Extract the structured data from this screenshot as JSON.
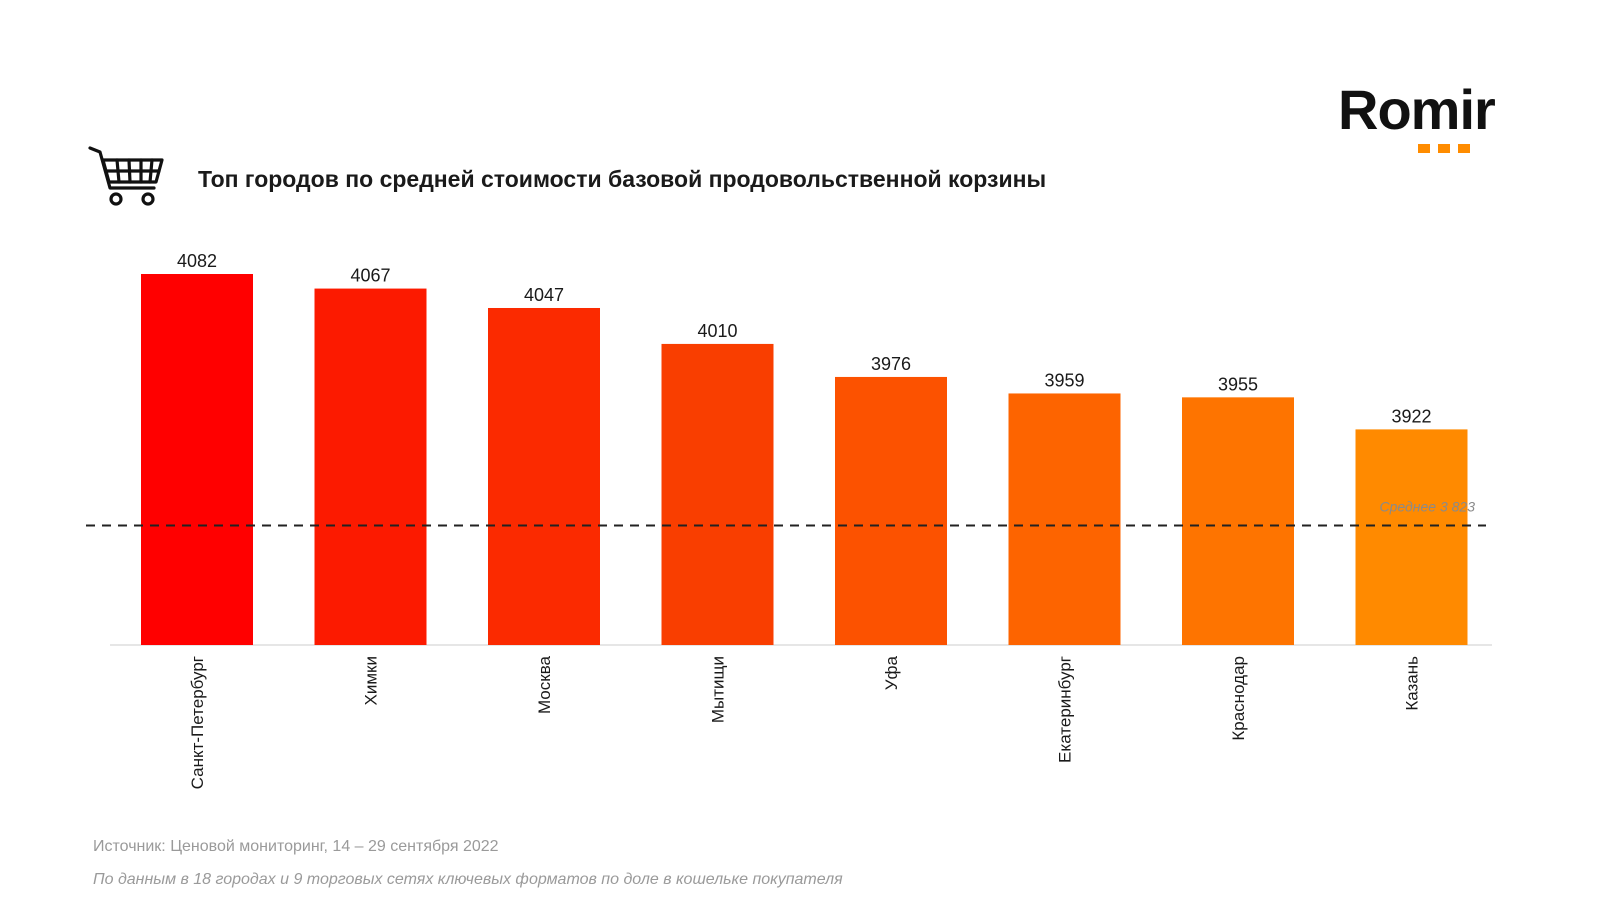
{
  "brand": {
    "name": "Romir",
    "dot_color": "#ff8c00"
  },
  "chart_data": {
    "type": "bar",
    "title": "Топ городов по средней стоимости базовой продовольственной корзины",
    "categories": [
      "Санкт-Петербург",
      "Химки",
      "Москва",
      "Мытищи",
      "Уфа",
      "Екатеринбург",
      "Краснодар",
      "Казань"
    ],
    "values": [
      4082,
      4067,
      4047,
      4010,
      3976,
      3959,
      3955,
      3922
    ],
    "value_labels": [
      "4082",
      "4067",
      "4047",
      "4010",
      "3976",
      "3959",
      "3955",
      "3922"
    ],
    "colors": [
      "#ff0000",
      "#fc1a00",
      "#fb2a00",
      "#f93e00",
      "#fc5200",
      "#fd6400",
      "#fe7400",
      "#ff8a00"
    ],
    "reference_line": {
      "value": 3823,
      "label": "Среднее  3 823"
    },
    "xlabel": "",
    "ylabel": "",
    "ylim": [
      3700,
      4100
    ],
    "grid": false,
    "legend": "none"
  },
  "footer": {
    "source": "Источник: Ценовой мониторинг, 14 – 29 сентября 2022",
    "note": "По данным в 18 городах и 9 торговых сетях ключевых форматов по доле в кошельке покупателя"
  }
}
